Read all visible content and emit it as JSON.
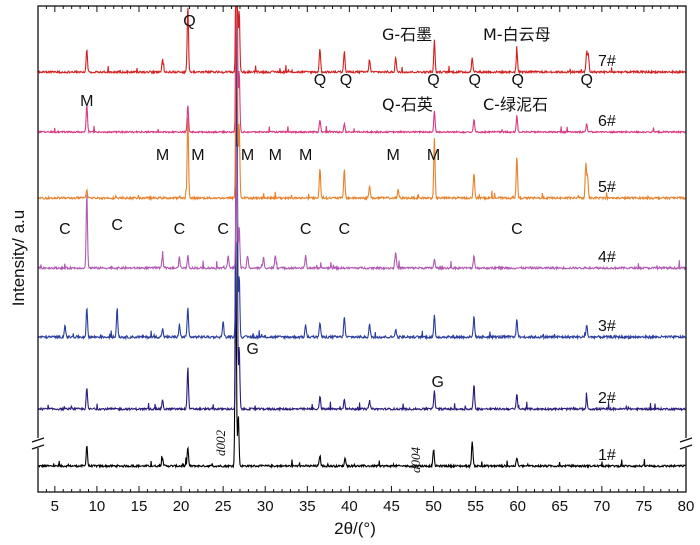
{
  "chart_data": {
    "type": "line",
    "xlabel": "2θ/(°)",
    "ylabel": "Intensity/ a.u",
    "xlim": [
      3,
      80
    ],
    "xticks": [
      5,
      10,
      15,
      20,
      25,
      30,
      35,
      40,
      45,
      50,
      55,
      60,
      65,
      70,
      75,
      80
    ],
    "yticks_shown": false,
    "axis_break": true,
    "legend": [
      {
        "text": "G-石墨"
      },
      {
        "text": "M-白云母"
      },
      {
        "text": "Q-石英"
      },
      {
        "text": "C-绿泥石"
      }
    ],
    "series": [
      {
        "name": "1#",
        "color": "#000000",
        "baseline": 0.0,
        "noise": 0.08,
        "peaks": [
          [
            8.8,
            0.5
          ],
          [
            17.8,
            0.2
          ],
          [
            20.8,
            0.45
          ],
          [
            26.5,
            5.5
          ],
          [
            26.8,
            1.2
          ],
          [
            36.5,
            0.25
          ],
          [
            39.5,
            0.2
          ],
          [
            50.0,
            0.4
          ],
          [
            54.6,
            0.6
          ],
          [
            59.9,
            0.2
          ]
        ]
      },
      {
        "name": "2#",
        "color": "#2a1a7a",
        "baseline": 1.0,
        "noise": 0.08,
        "peaks": [
          [
            8.8,
            0.5
          ],
          [
            17.8,
            0.2
          ],
          [
            20.8,
            1.0
          ],
          [
            26.6,
            9.0
          ],
          [
            26.9,
            1.5
          ],
          [
            36.5,
            0.3
          ],
          [
            39.4,
            0.25
          ],
          [
            42.4,
            0.2
          ],
          [
            50.1,
            0.45
          ],
          [
            54.8,
            0.55
          ],
          [
            59.9,
            0.35
          ],
          [
            68.2,
            0.25
          ]
        ]
      },
      {
        "name": "3#",
        "color": "#2a3d9e",
        "baseline": 2.0,
        "noise": 0.1,
        "peaks": [
          [
            6.2,
            0.3
          ],
          [
            8.8,
            0.7
          ],
          [
            12.4,
            0.7
          ],
          [
            17.8,
            0.2
          ],
          [
            19.8,
            0.3
          ],
          [
            20.8,
            0.7
          ],
          [
            25.0,
            0.4
          ],
          [
            26.6,
            9.5
          ],
          [
            26.9,
            1.5
          ],
          [
            34.8,
            0.3
          ],
          [
            36.5,
            0.35
          ],
          [
            39.4,
            0.5
          ],
          [
            42.4,
            0.3
          ],
          [
            45.5,
            0.2
          ],
          [
            50.1,
            0.5
          ],
          [
            54.8,
            0.5
          ],
          [
            59.9,
            0.45
          ],
          [
            68.2,
            0.3
          ]
        ]
      },
      {
        "name": "4#",
        "color": "#b05ab0",
        "baseline": 3.0,
        "noise": 0.08,
        "peaks": [
          [
            8.8,
            1.8
          ],
          [
            17.8,
            0.3
          ],
          [
            19.8,
            0.25
          ],
          [
            20.8,
            0.3
          ],
          [
            25.6,
            0.3
          ],
          [
            26.6,
            3.0
          ],
          [
            26.9,
            1.0
          ],
          [
            27.9,
            0.3
          ],
          [
            29.8,
            0.25
          ],
          [
            31.2,
            0.3
          ],
          [
            34.8,
            0.3
          ],
          [
            45.5,
            0.4
          ],
          [
            50.1,
            0.2
          ],
          [
            54.8,
            0.3
          ]
        ]
      },
      {
        "name": "5#",
        "color": "#e8812a",
        "baseline": 4.0,
        "noise": 0.08,
        "peaks": [
          [
            8.8,
            0.2
          ],
          [
            20.8,
            2.0
          ],
          [
            26.6,
            8.5
          ],
          [
            26.9,
            1.8
          ],
          [
            36.5,
            0.7
          ],
          [
            39.4,
            0.7
          ],
          [
            42.4,
            0.3
          ],
          [
            45.8,
            0.2
          ],
          [
            50.1,
            1.4
          ],
          [
            54.8,
            0.6
          ],
          [
            59.9,
            1.0
          ],
          [
            68.1,
            0.8
          ],
          [
            68.3,
            0.5
          ]
        ]
      },
      {
        "name": "6#",
        "color": "#d83a82",
        "baseline": 5.0,
        "noise": 0.06,
        "peaks": [
          [
            8.8,
            0.65
          ],
          [
            20.8,
            0.65
          ],
          [
            26.6,
            8.0
          ],
          [
            26.9,
            1.5
          ],
          [
            36.5,
            0.3
          ],
          [
            39.4,
            0.2
          ],
          [
            50.1,
            0.5
          ],
          [
            54.8,
            0.3
          ],
          [
            59.9,
            0.4
          ],
          [
            68.2,
            0.2
          ]
        ]
      },
      {
        "name": "7#",
        "color": "#d42020",
        "baseline": 6.0,
        "noise": 0.08,
        "peaks": [
          [
            8.8,
            0.55
          ],
          [
            17.8,
            0.3
          ],
          [
            20.8,
            1.6
          ],
          [
            26.6,
            7.5
          ],
          [
            26.9,
            1.5
          ],
          [
            36.5,
            0.55
          ],
          [
            39.4,
            0.5
          ],
          [
            42.4,
            0.3
          ],
          [
            45.5,
            0.35
          ],
          [
            50.1,
            0.75
          ],
          [
            54.6,
            0.35
          ],
          [
            59.9,
            0.5
          ],
          [
            68.2,
            0.5
          ],
          [
            68.4,
            0.4
          ]
        ]
      }
    ],
    "annotations": [
      {
        "text": "Q",
        "x": 21.0,
        "row": 5
      },
      {
        "text": "Q",
        "x": 36.5,
        "row": 5
      },
      {
        "text": "Q",
        "x": 39.6,
        "row": 5
      },
      {
        "text": "Q",
        "x": 50.0,
        "row": 5
      },
      {
        "text": "Q",
        "x": 54.9,
        "row": 5
      },
      {
        "text": "Q",
        "x": 60.0,
        "row": 5
      },
      {
        "text": "Q",
        "x": 68.2,
        "row": 5
      },
      {
        "text": "M",
        "x": 8.8,
        "row": 4
      },
      {
        "text": "M",
        "x": 17.8,
        "row": 4
      },
      {
        "text": "M",
        "x": 22.0,
        "row": 4
      },
      {
        "text": "M",
        "x": 27.9,
        "row": 4
      },
      {
        "text": "M",
        "x": 31.2,
        "row": 4
      },
      {
        "text": "M",
        "x": 34.8,
        "row": 4
      },
      {
        "text": "M",
        "x": 45.2,
        "row": 4
      },
      {
        "text": "M",
        "x": 50.0,
        "row": 4
      },
      {
        "text": "C",
        "x": 6.2,
        "row": 3
      },
      {
        "text": "C",
        "x": 12.4,
        "row": 3
      },
      {
        "text": "C",
        "x": 19.8,
        "row": 3
      },
      {
        "text": "C",
        "x": 25.0,
        "row": 3
      },
      {
        "text": "C",
        "x": 34.8,
        "row": 3
      },
      {
        "text": "C",
        "x": 39.4,
        "row": 3
      },
      {
        "text": "C",
        "x": 59.9,
        "row": 3
      },
      {
        "text": "G",
        "x": 28.5,
        "row": 1
      },
      {
        "text": "G",
        "x": 50.5,
        "row": 1
      }
    ],
    "miller": [
      {
        "text": "d002",
        "x": 25.2,
        "row": 1
      },
      {
        "text": "d004",
        "x": 48.4,
        "row": 1
      }
    ]
  }
}
